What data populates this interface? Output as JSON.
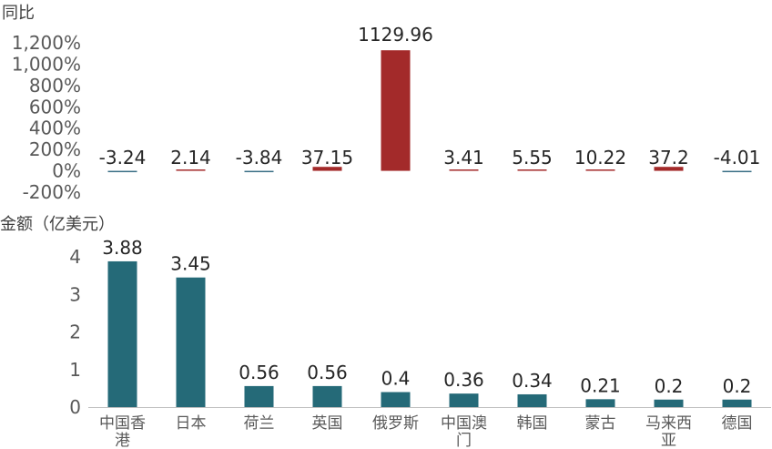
{
  "colors": {
    "positive": "#a32a2a",
    "negative": "#3a6f86",
    "amount": "#256a78",
    "axis": "#bfbfbf"
  },
  "chart_data": [
    {
      "type": "bar",
      "ylabel": "同比",
      "categories": [
        "中国香港",
        "日本",
        "荷兰",
        "英国",
        "俄罗斯",
        "中国澳门",
        "韩国",
        "蒙古",
        "马来西亚",
        "德国"
      ],
      "values": [
        -3.24,
        2.14,
        -3.84,
        37.15,
        1129.96,
        3.41,
        5.55,
        10.22,
        37.2,
        -4.01
      ],
      "data_labels": [
        "-3.24",
        "2.14",
        "-3.84",
        "37.15",
        "1129.96",
        "3.41",
        "5.55",
        "10.22",
        "37.2",
        "-4.01"
      ],
      "ylim": [
        -200,
        1200
      ],
      "yticks": [
        "1,200%",
        "1,000%",
        "800%",
        "600%",
        "400%",
        "200%",
        "0%",
        "-200%"
      ],
      "ytick_values": [
        1200,
        1000,
        800,
        600,
        400,
        200,
        0,
        -200
      ],
      "grid": false
    },
    {
      "type": "bar",
      "ylabel": "金额（亿美元）",
      "categories": [
        "中国香港",
        "日本",
        "荷兰",
        "英国",
        "俄罗斯",
        "中国澳门",
        "韩国",
        "蒙古",
        "马来西亚",
        "德国"
      ],
      "category_lines": [
        [
          "中国香",
          "港"
        ],
        [
          "日本"
        ],
        [
          "荷兰"
        ],
        [
          "英国"
        ],
        [
          "俄罗斯"
        ],
        [
          "中国澳",
          "门"
        ],
        [
          "韩国"
        ],
        [
          "蒙古"
        ],
        [
          "马来西",
          "亚"
        ],
        [
          "德国"
        ]
      ],
      "values": [
        3.88,
        3.45,
        0.56,
        0.56,
        0.4,
        0.36,
        0.34,
        0.21,
        0.2,
        0.2
      ],
      "data_labels": [
        "3.88",
        "3.45",
        "0.56",
        "0.56",
        "0.4",
        "0.36",
        "0.34",
        "0.21",
        "0.2",
        "0.2"
      ],
      "ylim": [
        0,
        4
      ],
      "yticks": [
        "4",
        "3",
        "2",
        "1",
        "0"
      ],
      "ytick_values": [
        4,
        3,
        2,
        1,
        0
      ],
      "grid": false
    }
  ]
}
